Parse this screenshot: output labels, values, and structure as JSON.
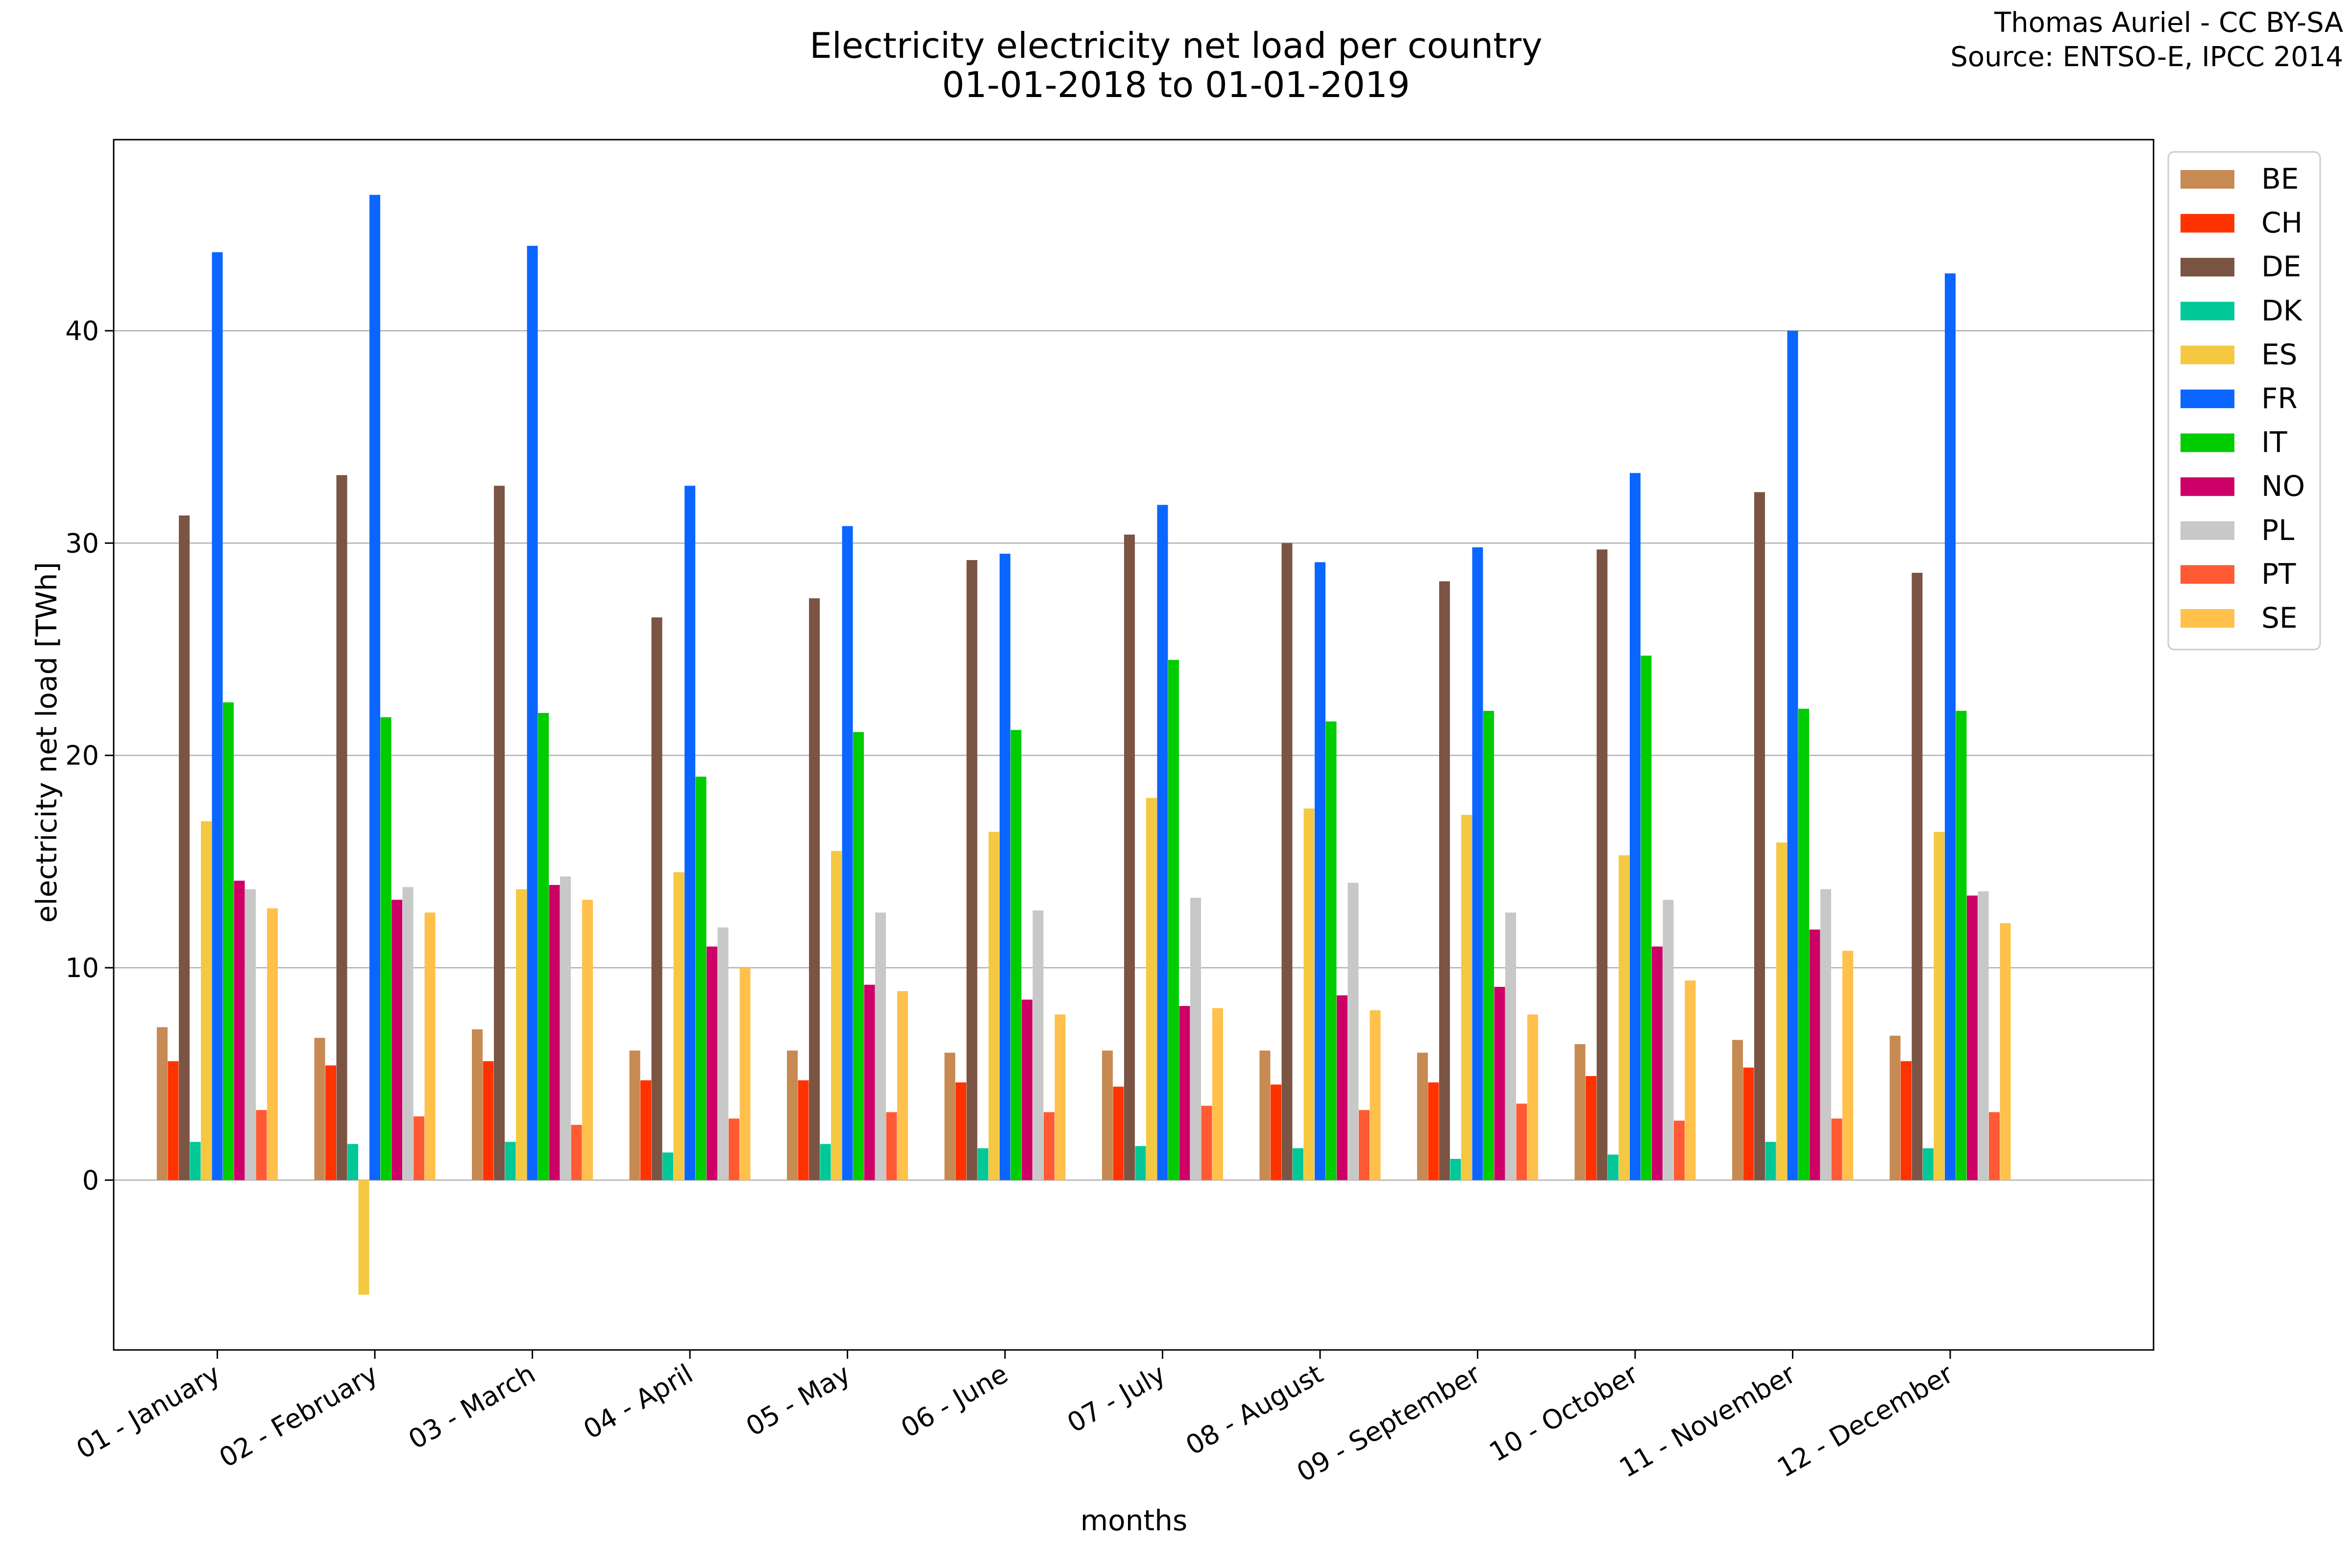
{
  "title_lines": [
    "Electricity electricity net load per country",
    "01-01-2018 to 01-01-2019"
  ],
  "credit_lines": [
    "Thomas Auriel - CC BY-SA",
    "Source: ENTSO-E, IPCC 2014"
  ],
  "chart_data": {
    "type": "bar",
    "title": "Electricity electricity net load per country\n01-01-2018 to 01-01-2019",
    "xlabel": "months",
    "ylabel": "electricity net load [TWh]",
    "ylim": [
      -8,
      49
    ],
    "yticks": [
      0,
      10,
      20,
      30,
      40
    ],
    "grid": "horizontal",
    "legend_position": "outside-top-right",
    "categories": [
      "01 - January",
      "02 - February",
      "03 - March",
      "04 - April",
      "05 - May",
      "06 - June",
      "07 - July",
      "08 - August",
      "09 - September",
      "10 - October",
      "11 - November",
      "12 - December"
    ],
    "series": [
      {
        "name": "BE",
        "color": "#c68a52",
        "values": [
          7.2,
          6.7,
          7.1,
          6.1,
          6.1,
          6.0,
          6.1,
          6.1,
          6.0,
          6.4,
          6.6,
          6.8
        ]
      },
      {
        "name": "CH",
        "color": "#ff3300",
        "values": [
          5.6,
          5.4,
          5.6,
          4.7,
          4.7,
          4.6,
          4.4,
          4.5,
          4.6,
          4.9,
          5.3,
          5.6
        ]
      },
      {
        "name": "DE",
        "color": "#7b5443",
        "values": [
          31.3,
          33.2,
          32.7,
          26.5,
          27.4,
          29.2,
          30.4,
          30.0,
          28.2,
          29.7,
          32.4,
          28.6
        ]
      },
      {
        "name": "DK",
        "color": "#00c896",
        "values": [
          1.8,
          1.7,
          1.8,
          1.3,
          1.7,
          1.5,
          1.6,
          1.5,
          1.0,
          1.2,
          1.8,
          1.5
        ]
      },
      {
        "name": "ES",
        "color": "#f5c842",
        "values": [
          16.9,
          -5.4,
          13.7,
          14.5,
          15.5,
          16.4,
          18.0,
          17.5,
          17.2,
          15.3,
          15.9,
          16.4
        ]
      },
      {
        "name": "FR",
        "color": "#0b66ff",
        "values": [
          43.7,
          46.4,
          44.0,
          32.7,
          30.8,
          29.5,
          31.8,
          29.1,
          29.8,
          33.3,
          40.0,
          42.7
        ]
      },
      {
        "name": "IT",
        "color": "#00cc00",
        "values": [
          22.5,
          21.8,
          22.0,
          19.0,
          21.1,
          21.2,
          24.5,
          21.6,
          22.1,
          24.7,
          22.2,
          22.1
        ]
      },
      {
        "name": "NO",
        "color": "#cc0066",
        "values": [
          14.1,
          13.2,
          13.9,
          11.0,
          9.2,
          8.5,
          8.2,
          8.7,
          9.1,
          11.0,
          11.8,
          13.4
        ]
      },
      {
        "name": "PL",
        "color": "#c8c8c8",
        "values": [
          13.7,
          13.8,
          14.3,
          11.9,
          12.6,
          12.7,
          13.3,
          14.0,
          12.6,
          13.2,
          13.7,
          13.6
        ]
      },
      {
        "name": "PT",
        "color": "#ff5a33",
        "values": [
          3.3,
          3.0,
          2.6,
          2.9,
          3.2,
          3.2,
          3.5,
          3.3,
          3.6,
          2.8,
          2.9,
          3.2
        ]
      },
      {
        "name": "SE",
        "color": "#ffc04c",
        "values": [
          12.8,
          12.6,
          13.2,
          10.0,
          8.9,
          7.8,
          8.1,
          8.0,
          7.8,
          9.4,
          10.8,
          12.1
        ]
      }
    ]
  }
}
